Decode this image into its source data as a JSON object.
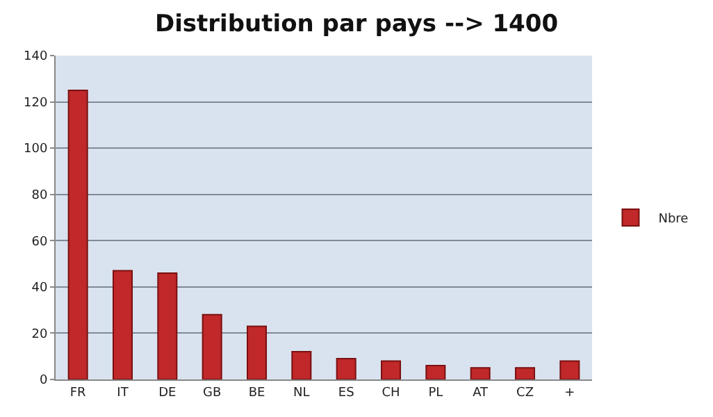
{
  "chart_data": {
    "type": "bar",
    "title": "Distribution par pays --> 1400",
    "categories": [
      "FR",
      "IT",
      "DE",
      "GB",
      "BE",
      "NL",
      "ES",
      "CH",
      "PL",
      "AT",
      "CZ",
      "+"
    ],
    "series": [
      {
        "name": "Nbre",
        "color": "#c0282a",
        "values": [
          125,
          47,
          46,
          28,
          23,
          12,
          9,
          8,
          6,
          5,
          5,
          8
        ]
      }
    ],
    "ylim": [
      0,
      140
    ],
    "yticks": [
      0,
      20,
      40,
      60,
      80,
      100,
      120,
      140
    ],
    "grid": "y",
    "legend": "right"
  }
}
